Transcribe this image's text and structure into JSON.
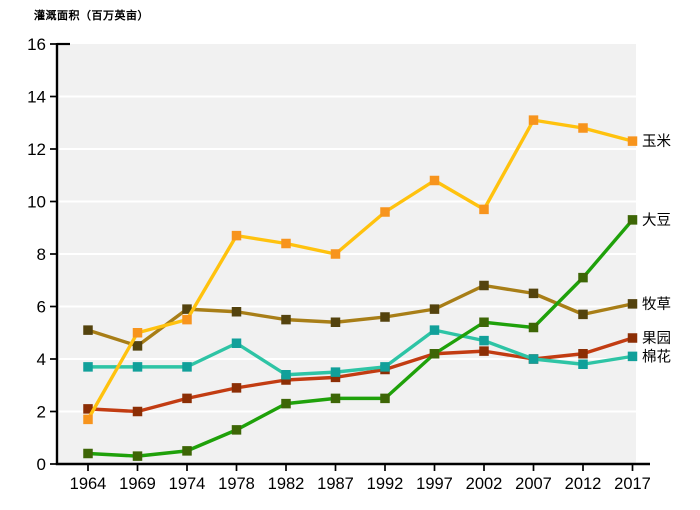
{
  "chart_data": {
    "type": "line",
    "title": "灌溉面积（百万英亩）",
    "title_meaning": "Irrigated area (million acres)",
    "xlabel": "",
    "ylabel": "",
    "ylim": [
      0,
      16
    ],
    "y_ticks": [
      0,
      2,
      4,
      6,
      8,
      10,
      12,
      14,
      16
    ],
    "grid": "horizontal white gridlines on light-gray plot area",
    "legend_position": "labels at right end of each line",
    "categories": [
      "1964",
      "1969",
      "1974",
      "1978",
      "1982",
      "1987",
      "1992",
      "1997",
      "2002",
      "2007",
      "2012",
      "2017"
    ],
    "series": [
      {
        "name": "玉米",
        "slug": "corn",
        "line_color": "#FFC20E",
        "marker_color": "#F7941D",
        "values": [
          1.7,
          5.0,
          5.5,
          8.7,
          8.4,
          8.0,
          9.6,
          10.8,
          9.7,
          13.1,
          12.8,
          12.3
        ]
      },
      {
        "name": "大豆",
        "slug": "soybeans",
        "line_color": "#1FA10A",
        "marker_color": "#3D6606",
        "values": [
          0.4,
          0.3,
          0.5,
          1.3,
          2.3,
          2.5,
          2.5,
          4.2,
          5.4,
          5.2,
          7.1,
          9.3
        ]
      },
      {
        "name": "牧草",
        "slug": "hay-pasture",
        "line_color": "#A87E17",
        "marker_color": "#54430E",
        "values": [
          5.1,
          4.5,
          5.9,
          5.8,
          5.5,
          5.4,
          5.6,
          5.9,
          6.8,
          6.5,
          5.7,
          6.1
        ]
      },
      {
        "name": "果园",
        "slug": "orchards",
        "line_color": "#C23C12",
        "marker_color": "#8C2E05",
        "values": [
          2.1,
          2.0,
          2.5,
          2.9,
          3.2,
          3.3,
          3.6,
          4.2,
          4.3,
          4.0,
          4.2,
          4.8
        ]
      },
      {
        "name": "棉花",
        "slug": "cotton",
        "line_color": "#2EC4A5",
        "marker_color": "#11A09A",
        "values": [
          3.7,
          3.7,
          3.7,
          4.6,
          3.4,
          3.5,
          3.7,
          5.1,
          4.7,
          4.0,
          3.8,
          4.1
        ]
      }
    ],
    "colors": {
      "plot_bg": "#F1F1F1",
      "grid_line": "#FFFFFF",
      "axis": "#000000",
      "text": "#000000",
      "page_bg": "#FFFFFF"
    }
  }
}
